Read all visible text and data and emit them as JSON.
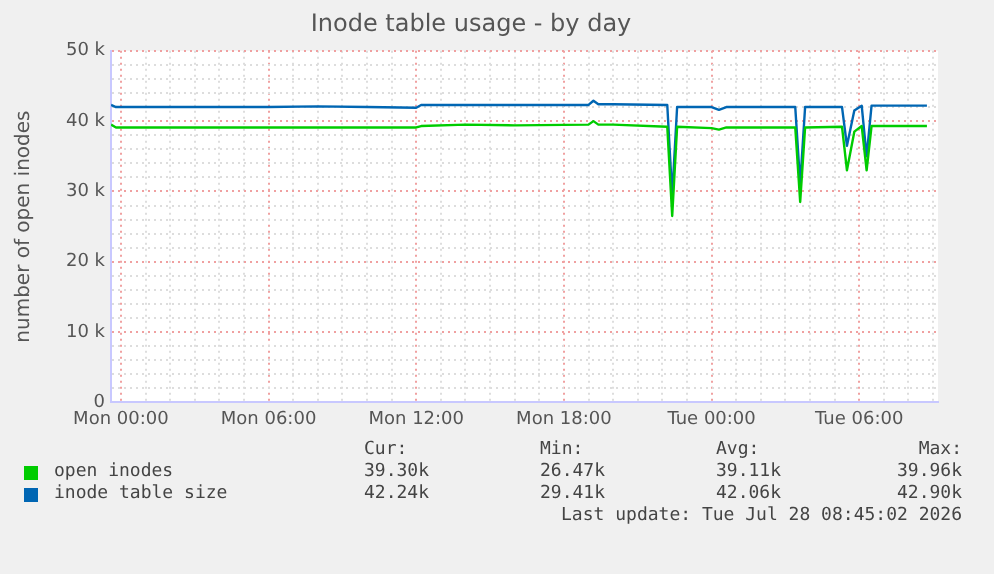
{
  "chart_data": {
    "type": "line",
    "title": "Inode table usage - by day",
    "ylabel": "number of open inodes",
    "xlim": [
      "2026-07-26T23:36",
      "2026-07-28T09:12"
    ],
    "xticks": [
      {
        "value": "2026-07-27T00:00",
        "label": "Mon 00:00"
      },
      {
        "value": "2026-07-27T01:00",
        "label": null
      },
      {
        "value": "2026-07-27T02:00",
        "label": null
      },
      {
        "value": "2026-07-27T03:00",
        "label": null
      },
      {
        "value": "2026-07-27T04:00",
        "label": null
      },
      {
        "value": "2026-07-27T05:00",
        "label": null
      },
      {
        "value": "2026-07-27T06:00",
        "label": "Mon 06:00"
      },
      {
        "value": "2026-07-27T07:00",
        "label": null
      },
      {
        "value": "2026-07-27T08:00",
        "label": null
      },
      {
        "value": "2026-07-27T09:00",
        "label": null
      },
      {
        "value": "2026-07-27T10:00",
        "label": null
      },
      {
        "value": "2026-07-27T11:00",
        "label": null
      },
      {
        "value": "2026-07-27T12:00",
        "label": "Mon 12:00"
      },
      {
        "value": "2026-07-27T13:00",
        "label": null
      },
      {
        "value": "2026-07-27T14:00",
        "label": null
      },
      {
        "value": "2026-07-27T15:00",
        "label": null
      },
      {
        "value": "2026-07-27T16:00",
        "label": null
      },
      {
        "value": "2026-07-27T17:00",
        "label": null
      },
      {
        "value": "2026-07-27T18:00",
        "label": "Mon 18:00"
      },
      {
        "value": "2026-07-27T19:00",
        "label": null
      },
      {
        "value": "2026-07-27T20:00",
        "label": null
      },
      {
        "value": "2026-07-27T21:00",
        "label": null
      },
      {
        "value": "2026-07-27T22:00",
        "label": null
      },
      {
        "value": "2026-07-27T23:00",
        "label": null
      },
      {
        "value": "2026-07-28T00:00",
        "label": "Tue 00:00"
      },
      {
        "value": "2026-07-28T01:00",
        "label": null
      },
      {
        "value": "2026-07-28T02:00",
        "label": null
      },
      {
        "value": "2026-07-28T03:00",
        "label": null
      },
      {
        "value": "2026-07-28T04:00",
        "label": null
      },
      {
        "value": "2026-07-28T05:00",
        "label": null
      },
      {
        "value": "2026-07-28T06:00",
        "label": "Tue 06:00"
      },
      {
        "value": "2026-07-28T07:00",
        "label": null
      },
      {
        "value": "2026-07-28T08:00",
        "label": null
      },
      {
        "value": "2026-07-28T09:00",
        "label": null
      }
    ],
    "ylim": [
      0,
      50000
    ],
    "yticks": [
      0,
      {
        "value": 2000,
        "label": null
      },
      {
        "value": 4000,
        "label": null
      },
      {
        "value": 6000,
        "label": null
      },
      {
        "value": 8000,
        "label": null
      },
      {
        "value": 10000,
        "label": "10 k"
      },
      {
        "value": 12000,
        "label": null
      },
      {
        "value": 14000,
        "label": null
      },
      {
        "value": 16000,
        "label": null
      },
      {
        "value": 18000,
        "label": null
      },
      {
        "value": 20000,
        "label": "20 k"
      },
      {
        "value": 22000,
        "label": null
      },
      {
        "value": 24000,
        "label": null
      },
      {
        "value": 26000,
        "label": null
      },
      {
        "value": 28000,
        "label": null
      },
      {
        "value": 30000,
        "label": "30 k"
      },
      {
        "value": 32000,
        "label": null
      },
      {
        "value": 34000,
        "label": null
      },
      {
        "value": 36000,
        "label": null
      },
      {
        "value": 38000,
        "label": null
      },
      {
        "value": 40000,
        "label": "40 k"
      },
      {
        "value": 42000,
        "label": null
      },
      {
        "value": 44000,
        "label": null
      },
      {
        "value": 46000,
        "label": null
      },
      {
        "value": 48000,
        "label": null
      },
      {
        "value": 50000,
        "label": "50 k"
      }
    ],
    "grid": true,
    "legend": "bottom",
    "marker": "none",
    "line_style": "solid",
    "x": [
      "2026-07-26T23:36",
      "2026-07-26T23:48",
      "2026-07-27T02:00",
      "2026-07-27T04:00",
      "2026-07-27T06:00",
      "2026-07-27T08:00",
      "2026-07-27T10:00",
      "2026-07-27T12:00",
      "2026-07-27T12:12",
      "2026-07-27T14:00",
      "2026-07-27T16:00",
      "2026-07-27T19:00",
      "2026-07-27T19:12",
      "2026-07-27T19:24",
      "2026-07-27T20:00",
      "2026-07-27T22:12",
      "2026-07-27T22:24",
      "2026-07-27T22:36",
      "2026-07-28T00:00",
      "2026-07-28T00:18",
      "2026-07-28T00:36",
      "2026-07-28T03:24",
      "2026-07-28T03:36",
      "2026-07-28T03:48",
      "2026-07-28T05:18",
      "2026-07-28T05:30",
      "2026-07-28T05:48",
      "2026-07-28T06:06",
      "2026-07-28T06:18",
      "2026-07-28T06:30",
      "2026-07-28T08:45"
    ],
    "series": [
      {
        "name": "open inodes",
        "color": "#00cc00",
        "values": [
          39500,
          39100,
          39100,
          39100,
          39100,
          39100,
          39100,
          39100,
          39300,
          39500,
          39400,
          39500,
          40000,
          39500,
          39500,
          39200,
          26500,
          39200,
          39000,
          38800,
          39100,
          39100,
          28500,
          39100,
          39200,
          33000,
          38500,
          39300,
          33000,
          39300,
          39300
        ]
      },
      {
        "name": "inode table size",
        "color": "#0066b3",
        "values": [
          42300,
          42000,
          42000,
          42000,
          42000,
          42100,
          42000,
          41900,
          42300,
          42300,
          42300,
          42300,
          42900,
          42400,
          42400,
          42300,
          29400,
          42000,
          42000,
          41600,
          42000,
          42000,
          31000,
          42000,
          42000,
          36500,
          41500,
          42200,
          35000,
          42200,
          42200
        ]
      }
    ],
    "annotations": [
      "Cur:",
      "Min:",
      "Avg:",
      "Max:",
      "39.30k",
      "26.47k",
      "39.11k",
      "39.96k",
      "42.24k",
      "29.41k",
      "42.06k",
      "42.90k",
      "Last update: Tue Jul 28 08:45:02 2026"
    ]
  }
}
